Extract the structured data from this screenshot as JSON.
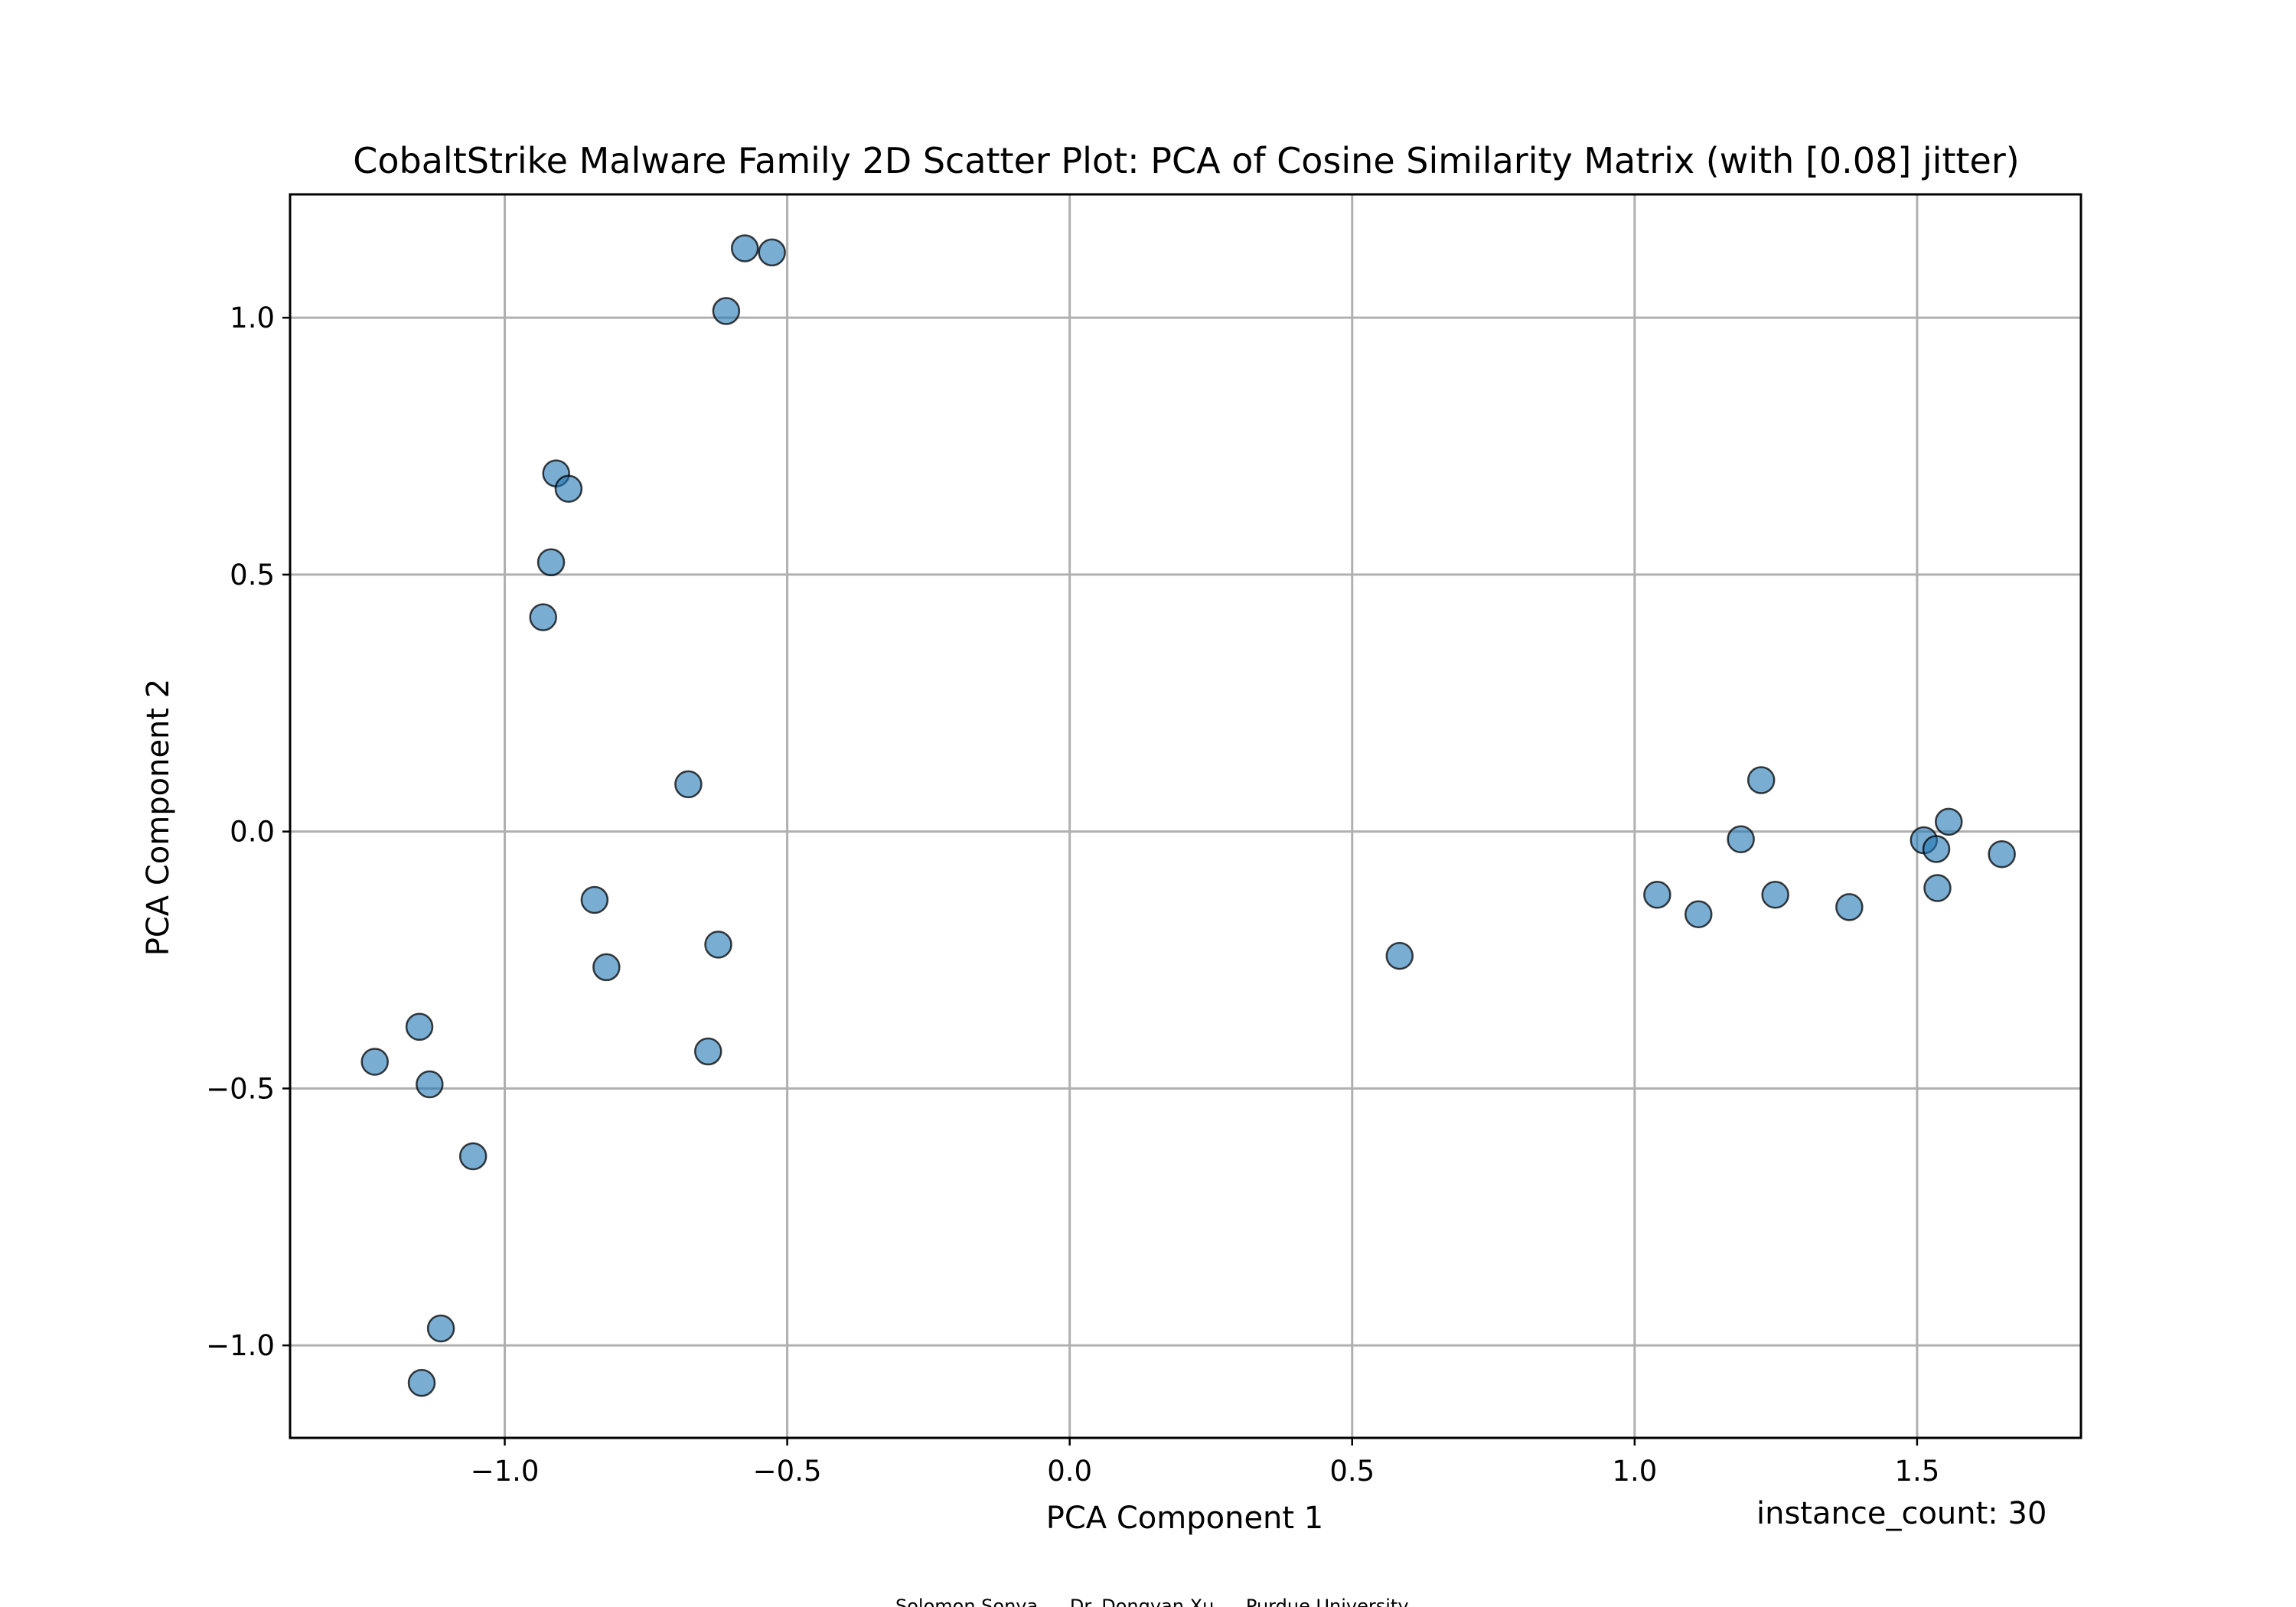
{
  "chart_data": {
    "type": "scatter",
    "title": "CobaltStrike Malware Family 2D Scatter Plot: PCA of Cosine Similarity Matrix (with [0.08] jitter)",
    "xlabel": "PCA Component 1",
    "ylabel": "PCA Component 2",
    "xlim": [
      -1.38,
      1.79
    ],
    "ylim": [
      -1.18,
      1.24
    ],
    "x_ticks": [
      -1.0,
      -0.5,
      0.0,
      0.5,
      1.0,
      1.5
    ],
    "x_tick_labels": [
      "−1.0",
      "−0.5",
      "0.0",
      "0.5",
      "1.0",
      "1.5"
    ],
    "y_ticks": [
      -1.0,
      -0.5,
      0.0,
      0.5,
      1.0
    ],
    "y_tick_labels": [
      "−1.0",
      "−0.5",
      "0.0",
      "0.5",
      "1.0"
    ],
    "grid": true,
    "marker_color": "#1f77b4",
    "marker_edge_color": "#000000",
    "points": [
      {
        "x": -0.575,
        "y": 1.135
      },
      {
        "x": -0.527,
        "y": 1.127
      },
      {
        "x": -0.608,
        "y": 1.013
      },
      {
        "x": -0.909,
        "y": 0.697
      },
      {
        "x": -0.887,
        "y": 0.667
      },
      {
        "x": -0.918,
        "y": 0.524
      },
      {
        "x": -0.932,
        "y": 0.417
      },
      {
        "x": -0.675,
        "y": 0.092
      },
      {
        "x": -0.841,
        "y": -0.133
      },
      {
        "x": -0.82,
        "y": -0.264
      },
      {
        "x": -0.622,
        "y": -0.22
      },
      {
        "x": -0.64,
        "y": -0.428
      },
      {
        "x": -1.151,
        "y": -0.38
      },
      {
        "x": -1.23,
        "y": -0.448
      },
      {
        "x": -1.133,
        "y": -0.492
      },
      {
        "x": -1.056,
        "y": -0.632
      },
      {
        "x": -1.113,
        "y": -0.967
      },
      {
        "x": -1.147,
        "y": -1.073
      },
      {
        "x": 0.584,
        "y": -0.242
      },
      {
        "x": 1.04,
        "y": -0.123
      },
      {
        "x": 1.113,
        "y": -0.161
      },
      {
        "x": 1.188,
        "y": -0.015
      },
      {
        "x": 1.224,
        "y": 0.1
      },
      {
        "x": 1.249,
        "y": -0.123
      },
      {
        "x": 1.38,
        "y": -0.147
      },
      {
        "x": 1.512,
        "y": -0.017
      },
      {
        "x": 1.534,
        "y": -0.034
      },
      {
        "x": 1.556,
        "y": 0.019
      },
      {
        "x": 1.536,
        "y": -0.11
      },
      {
        "x": 1.65,
        "y": -0.044
      }
    ]
  },
  "annotation": "instance_count: 30",
  "credits": {
    "author": "Solomon Sonya",
    "advisor": "Dr. Dongyan Xu",
    "institution": "Purdue University"
  }
}
